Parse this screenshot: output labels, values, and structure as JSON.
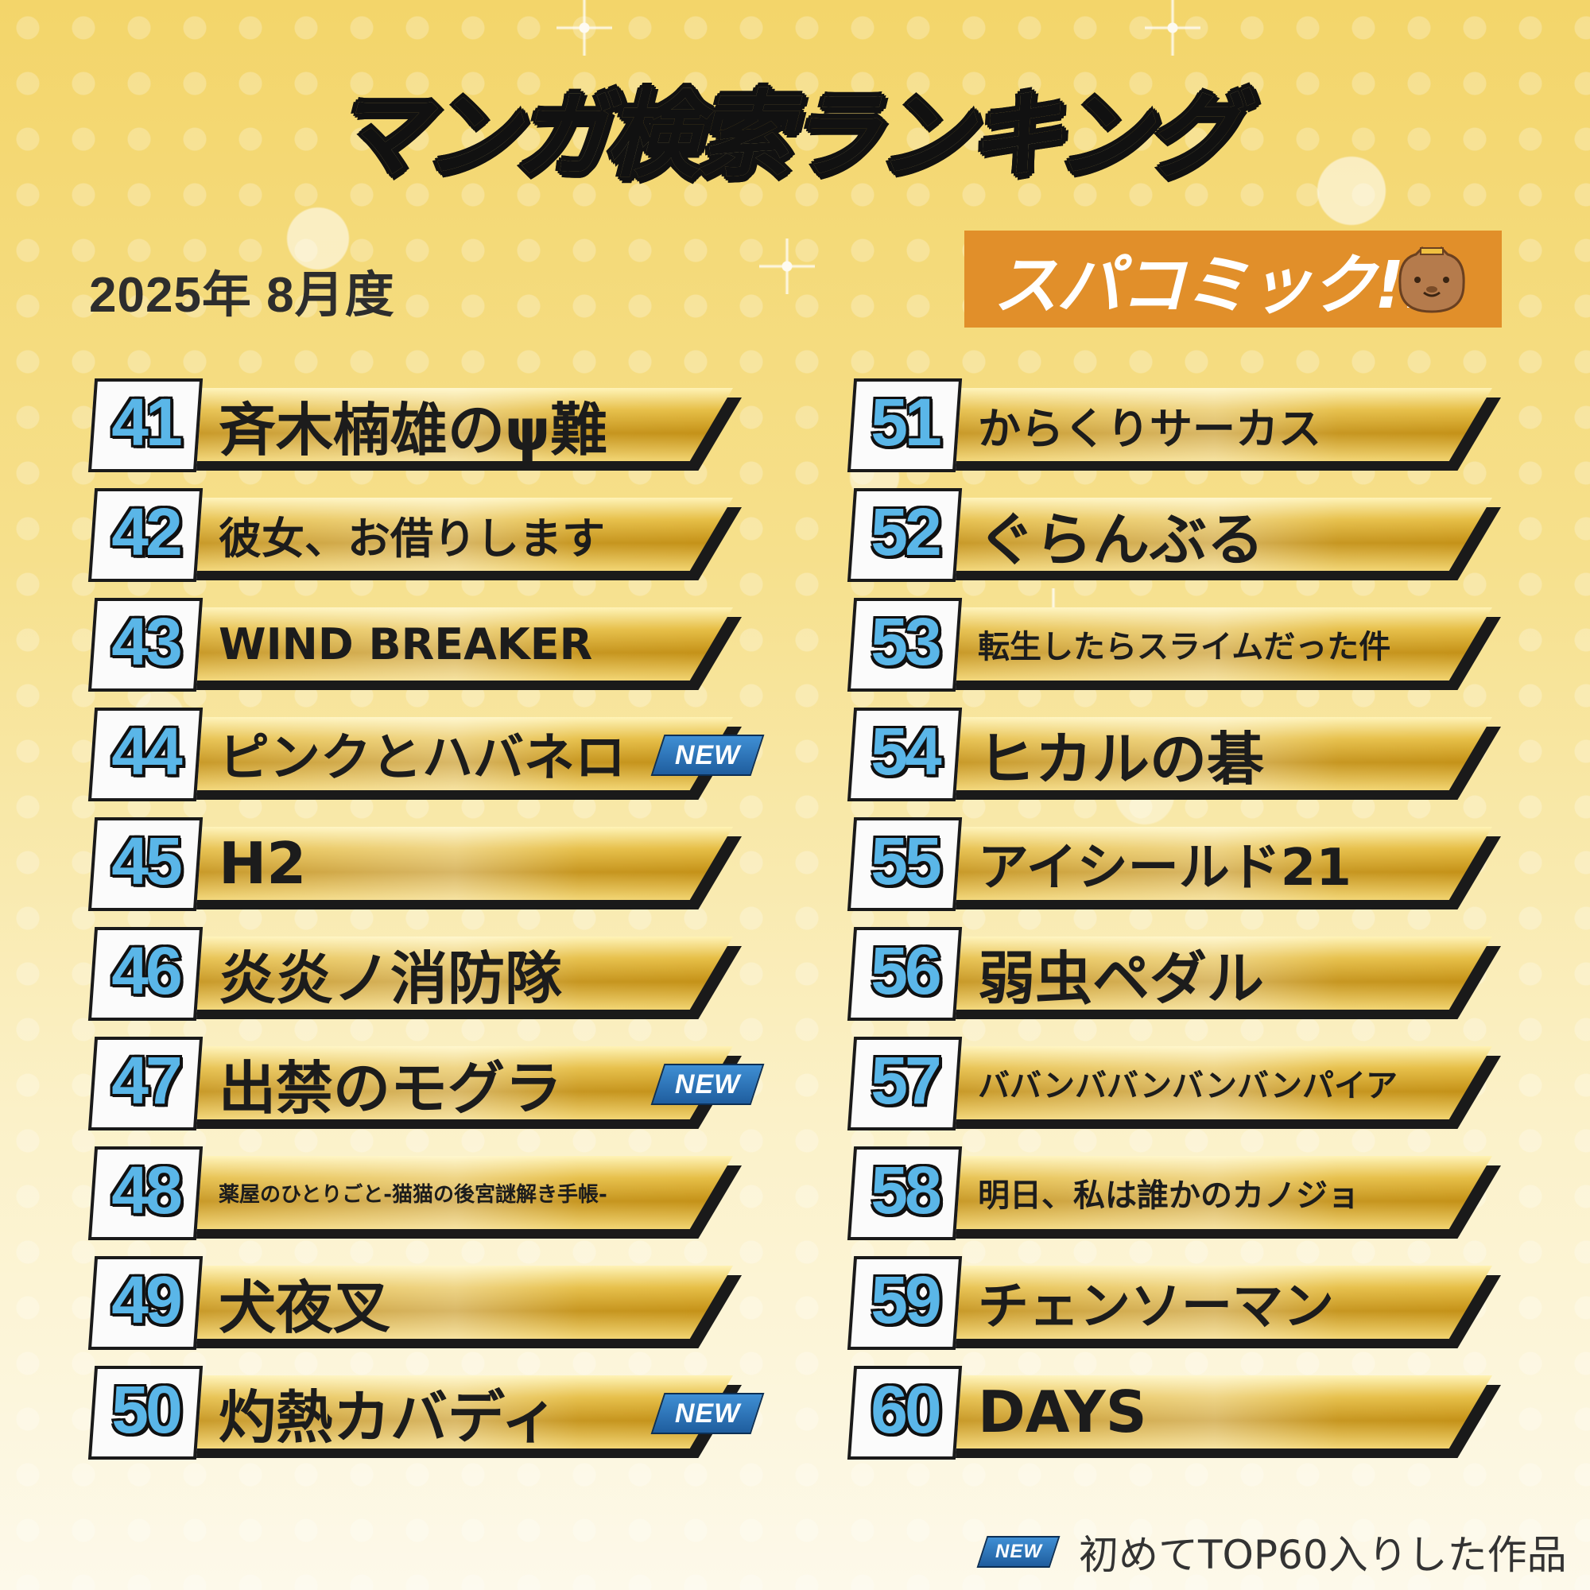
{
  "header": {
    "title": "マンガ検索ランキング",
    "period": "2025年 8月度",
    "brand": "スパコミック!!"
  },
  "new_label": "NEW",
  "legend": {
    "badge": "NEW",
    "text": "初めてTOP60入りした作品"
  },
  "colors": {
    "number_fill": "#5ab6e8",
    "brand_bg": "#e18f2a",
    "new_badge": "#2f74b8",
    "gold": "#d9a927"
  },
  "rankings_left": [
    {
      "rank": "41",
      "title": "斉木楠雄のψ難",
      "new": false,
      "size": "xl"
    },
    {
      "rank": "42",
      "title": "彼女、お借りします",
      "new": false,
      "size": "m"
    },
    {
      "rank": "43",
      "title": "WIND BREAKER",
      "new": false,
      "size": "m"
    },
    {
      "rank": "44",
      "title": "ピンクとハバネロ",
      "new": true,
      "size": "l"
    },
    {
      "rank": "45",
      "title": "H2",
      "new": false,
      "size": "xl"
    },
    {
      "rank": "46",
      "title": "炎炎ノ消防隊",
      "new": false,
      "size": "xl"
    },
    {
      "rank": "47",
      "title": "出禁のモグラ",
      "new": true,
      "size": "xl"
    },
    {
      "rank": "48",
      "title": "薬屋のひとりごと-猫猫の後宮謎解き手帳-",
      "new": false,
      "size": "xs"
    },
    {
      "rank": "49",
      "title": "犬夜叉",
      "new": false,
      "size": "xl"
    },
    {
      "rank": "50",
      "title": "灼熱カバディ",
      "new": true,
      "size": "xl"
    }
  ],
  "rankings_right": [
    {
      "rank": "51",
      "title": "からくりサーカス",
      "new": false,
      "size": "m"
    },
    {
      "rank": "52",
      "title": "ぐらんぶる",
      "new": false,
      "size": "xl"
    },
    {
      "rank": "53",
      "title": "転生したらスライムだった件",
      "new": false,
      "size": "s"
    },
    {
      "rank": "54",
      "title": "ヒカルの碁",
      "new": false,
      "size": "xl"
    },
    {
      "rank": "55",
      "title": "アイシールド21",
      "new": false,
      "size": "l"
    },
    {
      "rank": "56",
      "title": "弱虫ペダル",
      "new": false,
      "size": "xl"
    },
    {
      "rank": "57",
      "title": "ババンババンバンバンパイア",
      "new": false,
      "size": "s"
    },
    {
      "rank": "58",
      "title": "明日、私は誰かのカノジョ",
      "new": false,
      "size": "s"
    },
    {
      "rank": "59",
      "title": "チェンソーマン",
      "new": false,
      "size": "l"
    },
    {
      "rank": "60",
      "title": "DAYS",
      "new": false,
      "size": "xl"
    }
  ]
}
